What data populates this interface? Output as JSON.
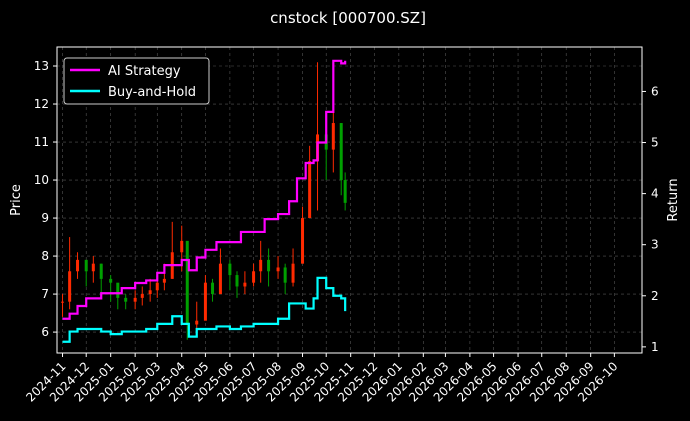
{
  "chart_data": {
    "type": "line",
    "title": "cnstock [000700.SZ]",
    "xlabel": "",
    "ylabel": "Price",
    "y2label": "Return",
    "x_ticks": [
      "2024-11",
      "2024-12",
      "2025-01",
      "2025-02",
      "2025-03",
      "2025-04",
      "2025-05",
      "2025-06",
      "2025-07",
      "2025-08",
      "2025-09",
      "2025-10",
      "2025-11",
      "2025-12",
      "2026-01",
      "2026-02",
      "2026-03",
      "2026-04",
      "2026-05",
      "2026-06",
      "2026-07",
      "2026-08",
      "2026-09",
      "2026-10"
    ],
    "y_ticks": [
      "6",
      "7",
      "8",
      "9",
      "10",
      "11",
      "12",
      "13"
    ],
    "y2_ticks": [
      "1",
      "2",
      "3",
      "4",
      "5",
      "6"
    ],
    "ylim": [
      5.45,
      13.5
    ],
    "y2lim": [
      0.88,
      6.87
    ],
    "grid": true,
    "legend_position": "top-left",
    "colors": {
      "background": "#000000",
      "ai_strategy": "#ff00ff",
      "buy_and_hold": "#00ffff",
      "candle_up": "#ff2a00",
      "candle_down": "#00a000",
      "grid": "#555555"
    },
    "series": [
      {
        "name": "AI Strategy",
        "axis": "return",
        "x": [
          "2024-11-01",
          "2024-11-10",
          "2024-11-20",
          "2024-12-01",
          "2024-12-20",
          "2025-01-01",
          "2025-01-15",
          "2025-02-01",
          "2025-02-15",
          "2025-03-01",
          "2025-03-10",
          "2025-03-20",
          "2025-04-01",
          "2025-04-10",
          "2025-04-20",
          "2025-05-01",
          "2025-05-15",
          "2025-06-01",
          "2025-06-15",
          "2025-07-01",
          "2025-07-15",
          "2025-08-01",
          "2025-08-15",
          "2025-08-25",
          "2025-09-05",
          "2025-09-15",
          "2025-09-20",
          "2025-10-01",
          "2025-10-10",
          "2025-10-20",
          "2025-10-25"
        ],
        "values": [
          1.55,
          1.65,
          1.8,
          1.95,
          2.05,
          2.05,
          2.15,
          2.25,
          2.3,
          2.45,
          2.6,
          2.6,
          2.7,
          2.5,
          2.75,
          2.9,
          3.05,
          3.05,
          3.25,
          3.25,
          3.5,
          3.6,
          3.85,
          4.3,
          4.6,
          4.65,
          5.0,
          5.6,
          6.6,
          6.55,
          6.6
        ]
      },
      {
        "name": "Buy-and-Hold",
        "axis": "return",
        "x": [
          "2024-11-01",
          "2024-11-10",
          "2024-11-20",
          "2024-12-01",
          "2024-12-20",
          "2025-01-01",
          "2025-01-15",
          "2025-02-01",
          "2025-02-15",
          "2025-03-01",
          "2025-03-10",
          "2025-03-20",
          "2025-04-01",
          "2025-04-10",
          "2025-04-20",
          "2025-05-01",
          "2025-05-15",
          "2025-06-01",
          "2025-06-15",
          "2025-07-01",
          "2025-07-15",
          "2025-08-01",
          "2025-08-15",
          "2025-08-25",
          "2025-09-05",
          "2025-09-15",
          "2025-09-20",
          "2025-10-01",
          "2025-10-10",
          "2025-10-20",
          "2025-10-25"
        ],
        "values": [
          1.1,
          1.3,
          1.35,
          1.35,
          1.3,
          1.25,
          1.3,
          1.3,
          1.35,
          1.45,
          1.45,
          1.6,
          1.45,
          1.2,
          1.35,
          1.35,
          1.4,
          1.35,
          1.4,
          1.45,
          1.45,
          1.55,
          1.85,
          1.85,
          1.75,
          1.95,
          2.35,
          2.15,
          2.0,
          1.95,
          1.7
        ]
      }
    ],
    "price_candles": {
      "x": [
        "2024-11-01",
        "2024-11-10",
        "2024-11-20",
        "2024-12-01",
        "2024-12-10",
        "2024-12-20",
        "2025-01-01",
        "2025-01-10",
        "2025-01-20",
        "2025-02-01",
        "2025-02-10",
        "2025-02-20",
        "2025-03-01",
        "2025-03-10",
        "2025-03-20",
        "2025-04-01",
        "2025-04-08",
        "2025-04-20",
        "2025-05-01",
        "2025-05-10",
        "2025-05-20",
        "2025-06-01",
        "2025-06-10",
        "2025-06-20",
        "2025-07-01",
        "2025-07-10",
        "2025-07-20",
        "2025-08-01",
        "2025-08-10",
        "2025-08-20",
        "2025-09-01",
        "2025-09-10",
        "2025-09-20",
        "2025-10-01",
        "2025-10-10",
        "2025-10-20",
        "2025-10-25"
      ],
      "close": [
        6.8,
        7.6,
        7.9,
        7.6,
        7.8,
        7.4,
        7.3,
        6.9,
        6.8,
        6.9,
        7.0,
        7.1,
        7.3,
        7.4,
        8.1,
        8.4,
        6.2,
        6.3,
        7.3,
        7.0,
        7.8,
        7.5,
        7.2,
        7.3,
        7.6,
        7.9,
        7.6,
        7.7,
        7.3,
        7.8,
        9.0,
        10.5,
        11.2,
        10.8,
        11.5,
        10.0,
        9.4
      ],
      "high": [
        7.0,
        8.5,
        8.1,
        7.9,
        8.0,
        7.8,
        7.5,
        7.2,
        7.0,
        7.1,
        7.2,
        7.4,
        7.5,
        7.8,
        8.9,
        8.8,
        7.2,
        6.8,
        7.5,
        7.4,
        8.2,
        7.9,
        7.6,
        7.6,
        7.8,
        8.4,
        8.2,
        8.0,
        7.8,
        8.2,
        9.3,
        10.9,
        13.1,
        11.8,
        12.4,
        10.6,
        10.2
      ],
      "low": [
        6.4,
        6.6,
        7.4,
        7.2,
        7.3,
        7.0,
        6.8,
        6.6,
        6.6,
        6.6,
        6.7,
        6.8,
        6.9,
        7.1,
        7.4,
        7.6,
        5.8,
        6.0,
        6.7,
        6.8,
        7.0,
        7.1,
        6.9,
        7.0,
        7.2,
        7.3,
        7.2,
        7.4,
        7.0,
        7.2,
        8.1,
        9.0,
        9.2,
        10.0,
        10.2,
        9.6,
        9.2
      ]
    }
  }
}
